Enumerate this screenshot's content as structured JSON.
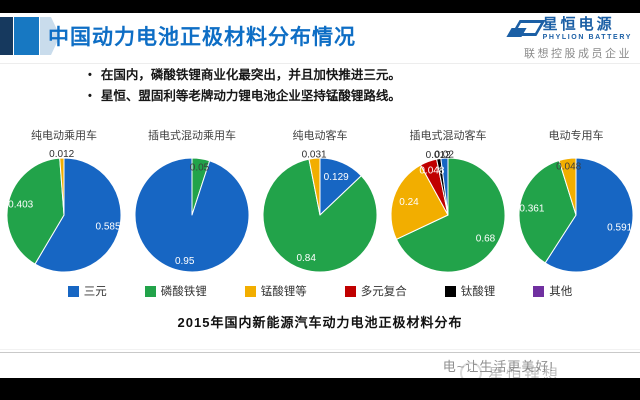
{
  "header": {
    "title": "中国动力电池正极材料分布情况",
    "logo": {
      "company": "星恒电源",
      "english": "PHYLION BATTERY",
      "tagline": "联想控股成员企业"
    }
  },
  "bullets": [
    "在国内，磷酸铁锂商业化最突出，并且加快推进三元。",
    "星恒、盟固利等老牌动力锂电池企业坚持锰酸锂路线。"
  ],
  "chart_data": {
    "type": "pie",
    "title": "2015年国内新能源汽车动力电池正极材料分布",
    "legend_position": "bottom",
    "legend": [
      {
        "label": "三元",
        "color": "#1766c3"
      },
      {
        "label": "磷酸铁锂",
        "color": "#22a34a"
      },
      {
        "label": "锰酸锂等",
        "color": "#f2ae00"
      },
      {
        "label": "多元复合",
        "color": "#c00000"
      },
      {
        "label": "钛酸锂",
        "color": "#000000"
      },
      {
        "label": "其他",
        "color": "#7030a0"
      }
    ],
    "pies": [
      {
        "title": "纯电动乘用车",
        "slices": [
          {
            "name": "三元",
            "value": 0.585,
            "label": "0.585",
            "label_color": "#ffffff",
            "label_r": 0.8
          },
          {
            "name": "磷酸铁锂",
            "value": 0.403,
            "label": "0.403",
            "label_color": "#ffffff",
            "label_r": 0.78
          },
          {
            "name": "锰酸锂等",
            "value": 0.012,
            "label": "0.012",
            "label_color": "#2e2e2e",
            "label_r": 1.06
          }
        ]
      },
      {
        "title": "插电式混动乘用车",
        "slices": [
          {
            "name": "磷酸铁锂",
            "value": 0.05,
            "label": "0.05",
            "label_color": "#3d3d3d",
            "label_r": 0.84
          },
          {
            "name": "三元",
            "value": 0.95,
            "label": "0.95",
            "label_color": "#ffffff",
            "label_r": 0.82
          }
        ]
      },
      {
        "title": "纯电动客车",
        "slices": [
          {
            "name": "三元",
            "value": 0.129,
            "label": "0.129",
            "label_color": "#ffffff",
            "label_r": 0.72
          },
          {
            "name": "磷酸铁锂",
            "value": 0.84,
            "label": "0.84",
            "label_color": "#ffffff",
            "label_r": 0.8
          },
          {
            "name": "锰酸锂等",
            "value": 0.031,
            "label": "0.031",
            "label_color": "#2e2e2e",
            "label_r": 1.06
          }
        ]
      },
      {
        "title": "插电式混动客车",
        "slices": [
          {
            "name": "磷酸铁锂",
            "value": 0.68,
            "label": "0.68",
            "label_color": "#ffffff",
            "label_r": 0.78
          },
          {
            "name": "锰酸锂等",
            "value": 0.24,
            "label": "0.24",
            "label_color": "#ffffff",
            "label_r": 0.72
          },
          {
            "name": "多元复合",
            "value": 0.048,
            "label": "0.048",
            "label_color": "#ffffff",
            "label_r": 0.82
          },
          {
            "name": "钛酸锂",
            "value": 0.012,
            "label": "0.012",
            "label_color": "#2e2e2e",
            "label_r": 1.06
          },
          {
            "name": "三元",
            "value": 0.02,
            "label": "0.02",
            "label_color": "#2e2e2e",
            "label_r": 1.06
          }
        ]
      },
      {
        "title": "电动专用车",
        "slices": [
          {
            "name": "三元",
            "value": 0.591,
            "label": "0.591",
            "label_color": "#ffffff",
            "label_r": 0.8
          },
          {
            "name": "磷酸铁锂",
            "value": 0.361,
            "label": "0.361",
            "label_color": "#ffffff",
            "label_r": 0.78
          },
          {
            "name": "锰酸锂等",
            "value": 0.048,
            "label": "0.048",
            "label_color": "#3d3d3d",
            "label_r": 0.85
          }
        ]
      }
    ]
  },
  "footer": {
    "slogan": "电~让生活更美好!",
    "watermark": "星恒锂想"
  },
  "colors": {
    "title_blue": "#0e6ec5",
    "accent_navy": "#16395e",
    "accent_blue": "#1778c2",
    "accent_pale": "#c9dcec",
    "logo_blue": "#1b5fa5"
  }
}
